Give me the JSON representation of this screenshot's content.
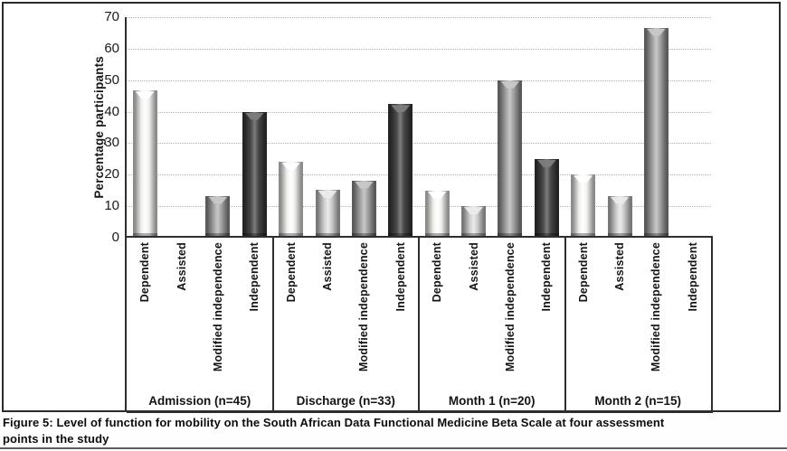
{
  "figure": {
    "caption_line1": "Figure 5: Level of function for mobility on the South African Data Functional Medicine Beta Scale at four assessment",
    "caption_line2": "points in the study"
  },
  "chart_data": {
    "type": "bar",
    "title": "",
    "xlabel": "",
    "ylabel": "Percentage participants",
    "ylim": [
      0,
      70
    ],
    "yticks": [
      0,
      10,
      20,
      30,
      40,
      50,
      60,
      70
    ],
    "grid": "horizontal dotted light-gray lines at each tick, 10 through 70",
    "legend_position": "none (categories labeled vertically under each bar)",
    "categories": [
      "Dependent",
      "Assisted",
      "Modified independence",
      "Independent"
    ],
    "groups": [
      {
        "label": "Admission (n=45)",
        "values": [
          46.7,
          0,
          13.3,
          40
        ]
      },
      {
        "label": "Discharge (n=33)",
        "values": [
          24.2,
          15.2,
          18.2,
          42.4
        ]
      },
      {
        "label": "Month 1 (n=20)",
        "values": [
          15,
          10,
          50,
          25
        ]
      },
      {
        "label": "Month 2 (n=15)",
        "values": [
          20,
          13.3,
          66.7,
          0
        ]
      }
    ],
    "bar_styles": [
      {
        "category": "Dependent",
        "face": "#efefec",
        "edge": "#8c8c8c",
        "cap": "#ffffff"
      },
      {
        "category": "Assisted",
        "face": "#cbcbcb",
        "edge": "#787878",
        "cap": "#ebebeb"
      },
      {
        "category": "Modified independence",
        "face": "#a0a0a0",
        "edge": "#5a5a5a",
        "cap": "#c8c8c8"
      },
      {
        "category": "Independent",
        "face": "#474747",
        "edge": "#232323",
        "cap": "#7d7d7d"
      }
    ],
    "axis_color": "#2e2e2e",
    "background_color": "#ffffff"
  }
}
